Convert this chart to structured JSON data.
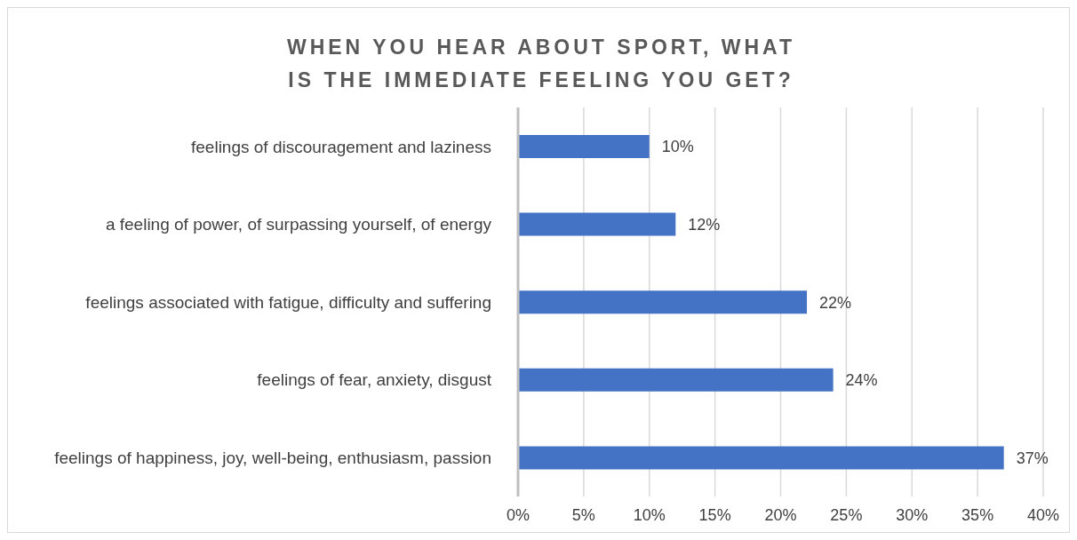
{
  "chart_data": {
    "type": "bar",
    "orientation": "horizontal",
    "title": "WHEN YOU HEAR ABOUT SPORT, WHAT IS THE IMMEDIATE FEELING YOU GET?",
    "categories": [
      "feelings of discouragement and laziness",
      "a feeling of power, of surpassing yourself, of energy",
      "feelings associated with fatigue, difficulty and suffering",
      "feelings of fear, anxiety, disgust",
      "feelings of happiness, joy, well-being, enthusiasm, passion"
    ],
    "values": [
      10,
      12,
      22,
      24,
      37
    ],
    "value_labels": [
      "10%",
      "12%",
      "22%",
      "24%",
      "37%"
    ],
    "color": "#4472c4",
    "xlim": [
      0,
      40
    ],
    "xticks": [
      {
        "value": 0,
        "label": "0%"
      },
      {
        "value": 5,
        "label": "5%"
      },
      {
        "value": 10,
        "label": "10%"
      },
      {
        "value": 15,
        "label": "15%"
      },
      {
        "value": 20,
        "label": "20%"
      },
      {
        "value": 25,
        "label": "25%"
      },
      {
        "value": 30,
        "label": "30%"
      },
      {
        "value": 35,
        "label": "35%"
      },
      {
        "value": 40,
        "label": "40%"
      }
    ],
    "grid": "x"
  }
}
